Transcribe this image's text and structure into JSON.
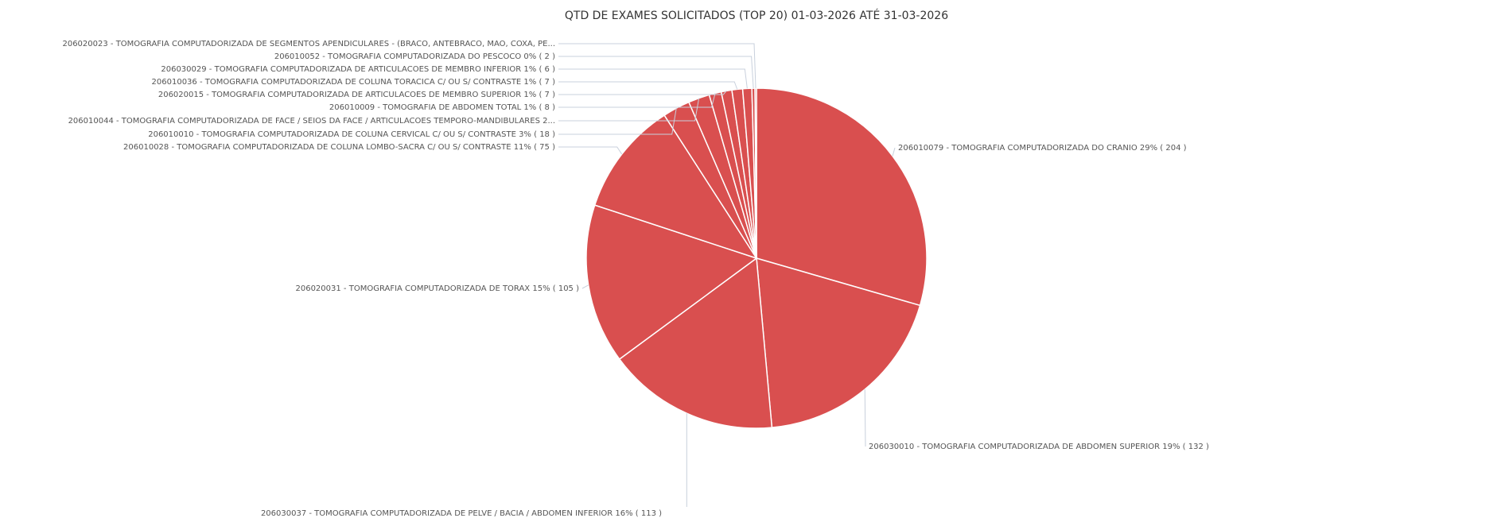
{
  "chart_data": {
    "type": "pie",
    "title": "QTD DE EXAMES SOLICITADOS (TOP 20) 01-03-2026 ATÉ 31-03-2026",
    "categories": [
      "206010079 - TOMOGRAFIA COMPUTADORIZADA DO CRANIO 29% ( 204 )",
      "206030010 - TOMOGRAFIA COMPUTADORIZADA DE ABDOMEN SUPERIOR 19% ( 132 )",
      "206030037 - TOMOGRAFIA COMPUTADORIZADA DE PELVE / BACIA / ABDOMEN INFERIOR 16% ( 113 )",
      "206020031 - TOMOGRAFIA COMPUTADORIZADA DE TORAX 15% ( 105 )",
      "206010028 - TOMOGRAFIA COMPUTADORIZADA DE COLUNA LOMBO-SACRA C/ OU S/ CONTRASTE 11% ( 75 )",
      "206010010 - TOMOGRAFIA COMPUTADORIZADA DE COLUNA CERVICAL C/ OU S/ CONTRASTE 3% ( 18 )",
      "206010044 - TOMOGRAFIA COMPUTADORIZADA DE FACE / SEIOS DA FACE / ARTICULACOES TEMPORO-MANDIBULARES 2...",
      "206010009 - TOMOGRAFIA DE ABDOMEN TOTAL 1% ( 8 )",
      "206020015 - TOMOGRAFIA COMPUTADORIZADA DE ARTICULACOES DE MEMBRO SUPERIOR 1% ( 7 )",
      "206010036 - TOMOGRAFIA COMPUTADORIZADA DE COLUNA TORACICA C/ OU S/ CONTRASTE 1% ( 7 )",
      "206030029 - TOMOGRAFIA COMPUTADORIZADA DE ARTICULACOES DE MEMBRO INFERIOR 1% ( 6 )",
      "206010052 - TOMOGRAFIA COMPUTADORIZADA DO PESCOCO 0% ( 2 )",
      "206020023 - TOMOGRAFIA COMPUTADORIZADA DE SEGMENTOS APENDICULARES - (BRACO, ANTEBRACO, MAO, COXA, PE..."
    ],
    "values": [
      204,
      132,
      113,
      105,
      75,
      18,
      14,
      8,
      7,
      7,
      6,
      2,
      1
    ],
    "color": "#d94f4f"
  }
}
